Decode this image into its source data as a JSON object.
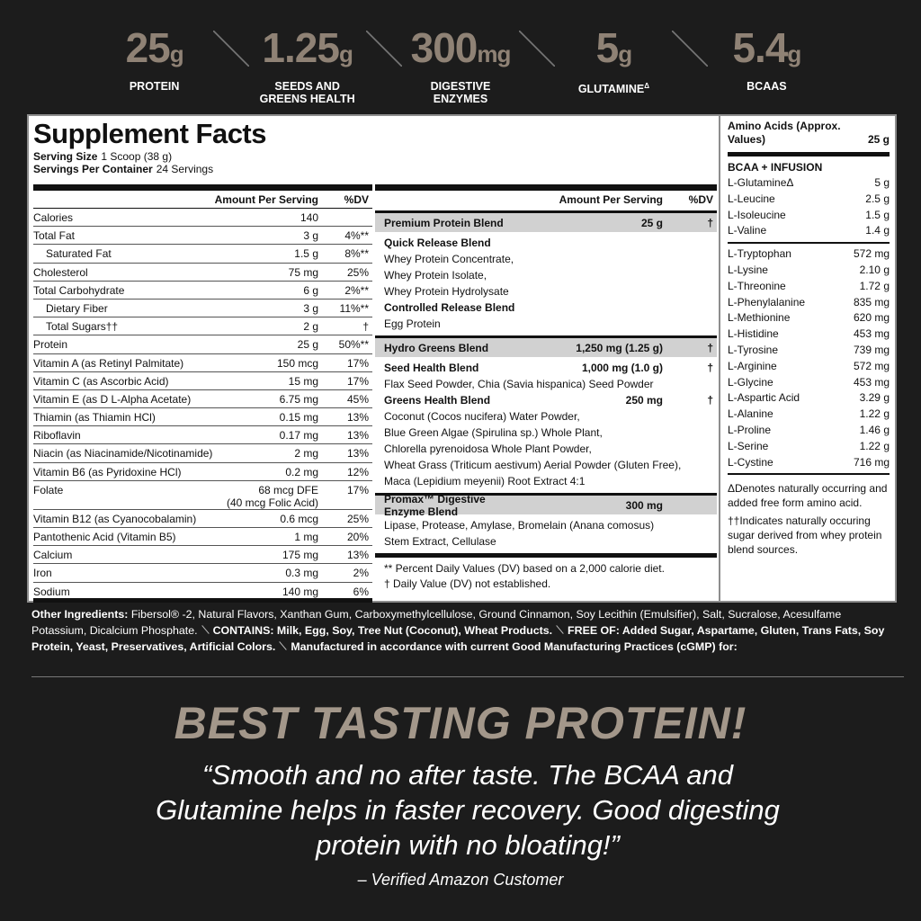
{
  "stats": [
    {
      "value": "25",
      "unit": "g",
      "label": "PROTEIN"
    },
    {
      "value": "1.25",
      "unit": "g",
      "label": "SEEDS AND GREENS HEALTH"
    },
    {
      "value": "300",
      "unit": "mg",
      "label": "DIGESTIVE ENZYMES"
    },
    {
      "value": "5",
      "unit": "g",
      "label": "GLUTAMINE",
      "mark": "Δ"
    },
    {
      "value": "5.4",
      "unit": "g",
      "label": "BCAAS"
    }
  ],
  "facts": {
    "title": "Supplement Facts",
    "serving_size": {
      "label": "Serving Size",
      "value": "1 Scoop (38 g)"
    },
    "servings": {
      "label": "Servings Per Container",
      "value": "24 Servings"
    },
    "columns": [
      "Amount Per Serving",
      "%DV"
    ],
    "rows": [
      {
        "name": "Calories",
        "amount": "140"
      },
      {
        "name": "Total Fat",
        "amount": "3 g",
        "dv": "4%**"
      },
      {
        "name": "Saturated Fat",
        "amount": "1.5 g",
        "dv": "8%**"
      },
      {
        "name": "Cholesterol",
        "amount": "75 mg",
        "dv": "25%"
      },
      {
        "name": "Total Carbohydrate",
        "amount": "6 g",
        "dv": "2%**"
      },
      {
        "name": "Dietary Fiber",
        "amount": "3 g",
        "dv": "11%**"
      },
      {
        "name": "Total Sugars††",
        "amount": "2 g",
        "dv": "†"
      },
      {
        "name": "Protein",
        "amount": "25 g",
        "dv": "50%**"
      },
      {
        "name": "Vitamin A (as Retinyl Palmitate)",
        "amount": "150 mcg",
        "dv": "17%"
      },
      {
        "name": "Vitamin C (as Ascorbic Acid)",
        "amount": "15 mg",
        "dv": "17%"
      },
      {
        "name": "Vitamin E (as D L-Alpha Acetate)",
        "amount": "6.75 mg",
        "dv": "45%"
      },
      {
        "name": "Thiamin (as Thiamin HCl)",
        "amount": "0.15 mg",
        "dv": "13%"
      },
      {
        "name": "Riboflavin",
        "amount": "0.17 mg",
        "dv": "13%"
      },
      {
        "name": "Niacin (as Niacinamide/Nicotinamide)",
        "amount": "2 mg",
        "dv": "13%"
      },
      {
        "name": "Vitamin B6 (as Pyridoxine HCl)",
        "amount": "0.2 mg",
        "dv": "12%"
      },
      {
        "name": "Folate",
        "amount": "68 mcg DFE",
        "amount_note": "(40 mcg Folic Acid)",
        "dv": "17%"
      },
      {
        "name": "Vitamin B12 (as Cyanocobalamin)",
        "amount": "0.6 mcg",
        "dv": "25%"
      },
      {
        "name": "Pantothenic Acid (Vitamin B5)",
        "amount": "1 mg",
        "dv": "20%"
      },
      {
        "name": "Calcium",
        "amount": "175 mg",
        "dv": "13%"
      },
      {
        "name": "Iron",
        "amount": "0.3 mg",
        "dv": "2%"
      },
      {
        "name": "Sodium",
        "amount": "140 mg",
        "dv": "6%"
      }
    ],
    "blend_columns": [
      "Amount Per Serving",
      "%DV"
    ],
    "blends": [
      {
        "name": "Premium Protein Blend",
        "amount": "25 g",
        "dv": "†",
        "items": [
          {
            "name": "Quick Release Blend",
            "lines": [
              "Whey Protein Concentrate,",
              "Whey Protein Isolate,",
              "Whey Protein Hydrolysate"
            ]
          },
          {
            "name": "Controlled Release Blend",
            "lines": [
              "Egg Protein"
            ]
          }
        ]
      },
      {
        "name": "Hydro Greens Blend",
        "amount": "1,250 mg (1.25 g)",
        "dv": "†",
        "items": [
          {
            "name": "Seed Health Blend",
            "amount": "1,000 mg (1.0 g)",
            "dv": "†",
            "lines": [
              "Flax Seed Powder, Chia (Savia hispanica) Seed Powder"
            ]
          },
          {
            "name": "Greens Health Blend",
            "amount": "250 mg",
            "dv": "†",
            "lines": [
              "Coconut (Cocos nucifera) Water Powder,",
              "Blue Green Algae (Spirulina sp.) Whole Plant,",
              "Chlorella pyrenoidosa Whole Plant Powder,",
              "Wheat Grass (Triticum aestivum) Aerial Powder (Gluten Free),",
              "Maca (Lepidium meyenii) Root Extract 4:1"
            ]
          }
        ]
      },
      {
        "name": "Promax™ Digestive Enzyme Blend",
        "amount": "300 mg",
        "items": [
          {
            "lines": [
              "Lipase, Protease, Amylase, Bromelain (Anana comosus)",
              "Stem Extract, Cellulase"
            ]
          }
        ]
      }
    ],
    "footnotes": [
      "** Percent Daily Values (DV) based on a 2,000 calorie diet.",
      "† Daily Value (DV) not established."
    ]
  },
  "amino": {
    "title": "Amino Acids (Approx. Values)",
    "amount": "25 g",
    "group": "BCAA + INFUSION",
    "bcaa": [
      {
        "name": "L-GlutamineΔ",
        "amount": "5 g"
      },
      {
        "name": "L-Leucine",
        "amount": "2.5 g"
      },
      {
        "name": "L-Isoleucine",
        "amount": "1.5 g"
      },
      {
        "name": "L-Valine",
        "amount": "1.4 g"
      }
    ],
    "others": [
      {
        "name": "L-Tryptophan",
        "amount": "572 mg"
      },
      {
        "name": "L-Lysine",
        "amount": "2.10 g"
      },
      {
        "name": "L-Threonine",
        "amount": "1.72 g"
      },
      {
        "name": "L-Phenylalanine",
        "amount": "835 mg"
      },
      {
        "name": "L-Methionine",
        "amount": "620 mg"
      },
      {
        "name": "L-Histidine",
        "amount": "453 mg"
      },
      {
        "name": "L-Tyrosine",
        "amount": "739 mg"
      },
      {
        "name": "L-Arginine",
        "amount": "572 mg"
      },
      {
        "name": "L-Glycine",
        "amount": "453 mg"
      },
      {
        "name": "L-Aspartic Acid",
        "amount": "3.29 g"
      },
      {
        "name": "L-Alanine",
        "amount": "1.22 g"
      },
      {
        "name": "L-Proline",
        "amount": "1.46 g"
      },
      {
        "name": "L-Serine",
        "amount": "1.22 g"
      },
      {
        "name": "L-Cystine",
        "amount": "716 mg"
      }
    ],
    "notes": [
      "ΔDenotes naturally occurring and added free form amino acid.",
      "††Indicates naturally occuring sugar derived from whey protein blend sources."
    ]
  },
  "ingredients": {
    "label": "Other Ingredients:",
    "text": "Fibersol® -2, Natural Flavors, Xanthan Gum, Carboxymethylcellulose, Ground Cinnamon, Soy Lecithin (Emulsifier), Salt, Sucralose, Acesulfame Potassium, Dicalcium Phosphate.",
    "statements": [
      "CONTAINS: Milk, Egg, Soy, Tree Nut (Coconut), Wheat Products.",
      "FREE OF: Added Sugar, Aspartame, Gluten, Trans Fats, Soy Protein, Yeast, Preservatives, Artificial Colors.",
      "Manufactured in accordance with current Good Manufacturing Practices (cGMP) for:"
    ]
  },
  "review": {
    "headline": "BEST TASTING PROTEIN!",
    "quote": "“Smooth and no after taste. The BCAA and Glutamine helps in faster recovery. Good digesting protein with no bloating!”",
    "attribution": "– Verified Amazon Customer"
  }
}
